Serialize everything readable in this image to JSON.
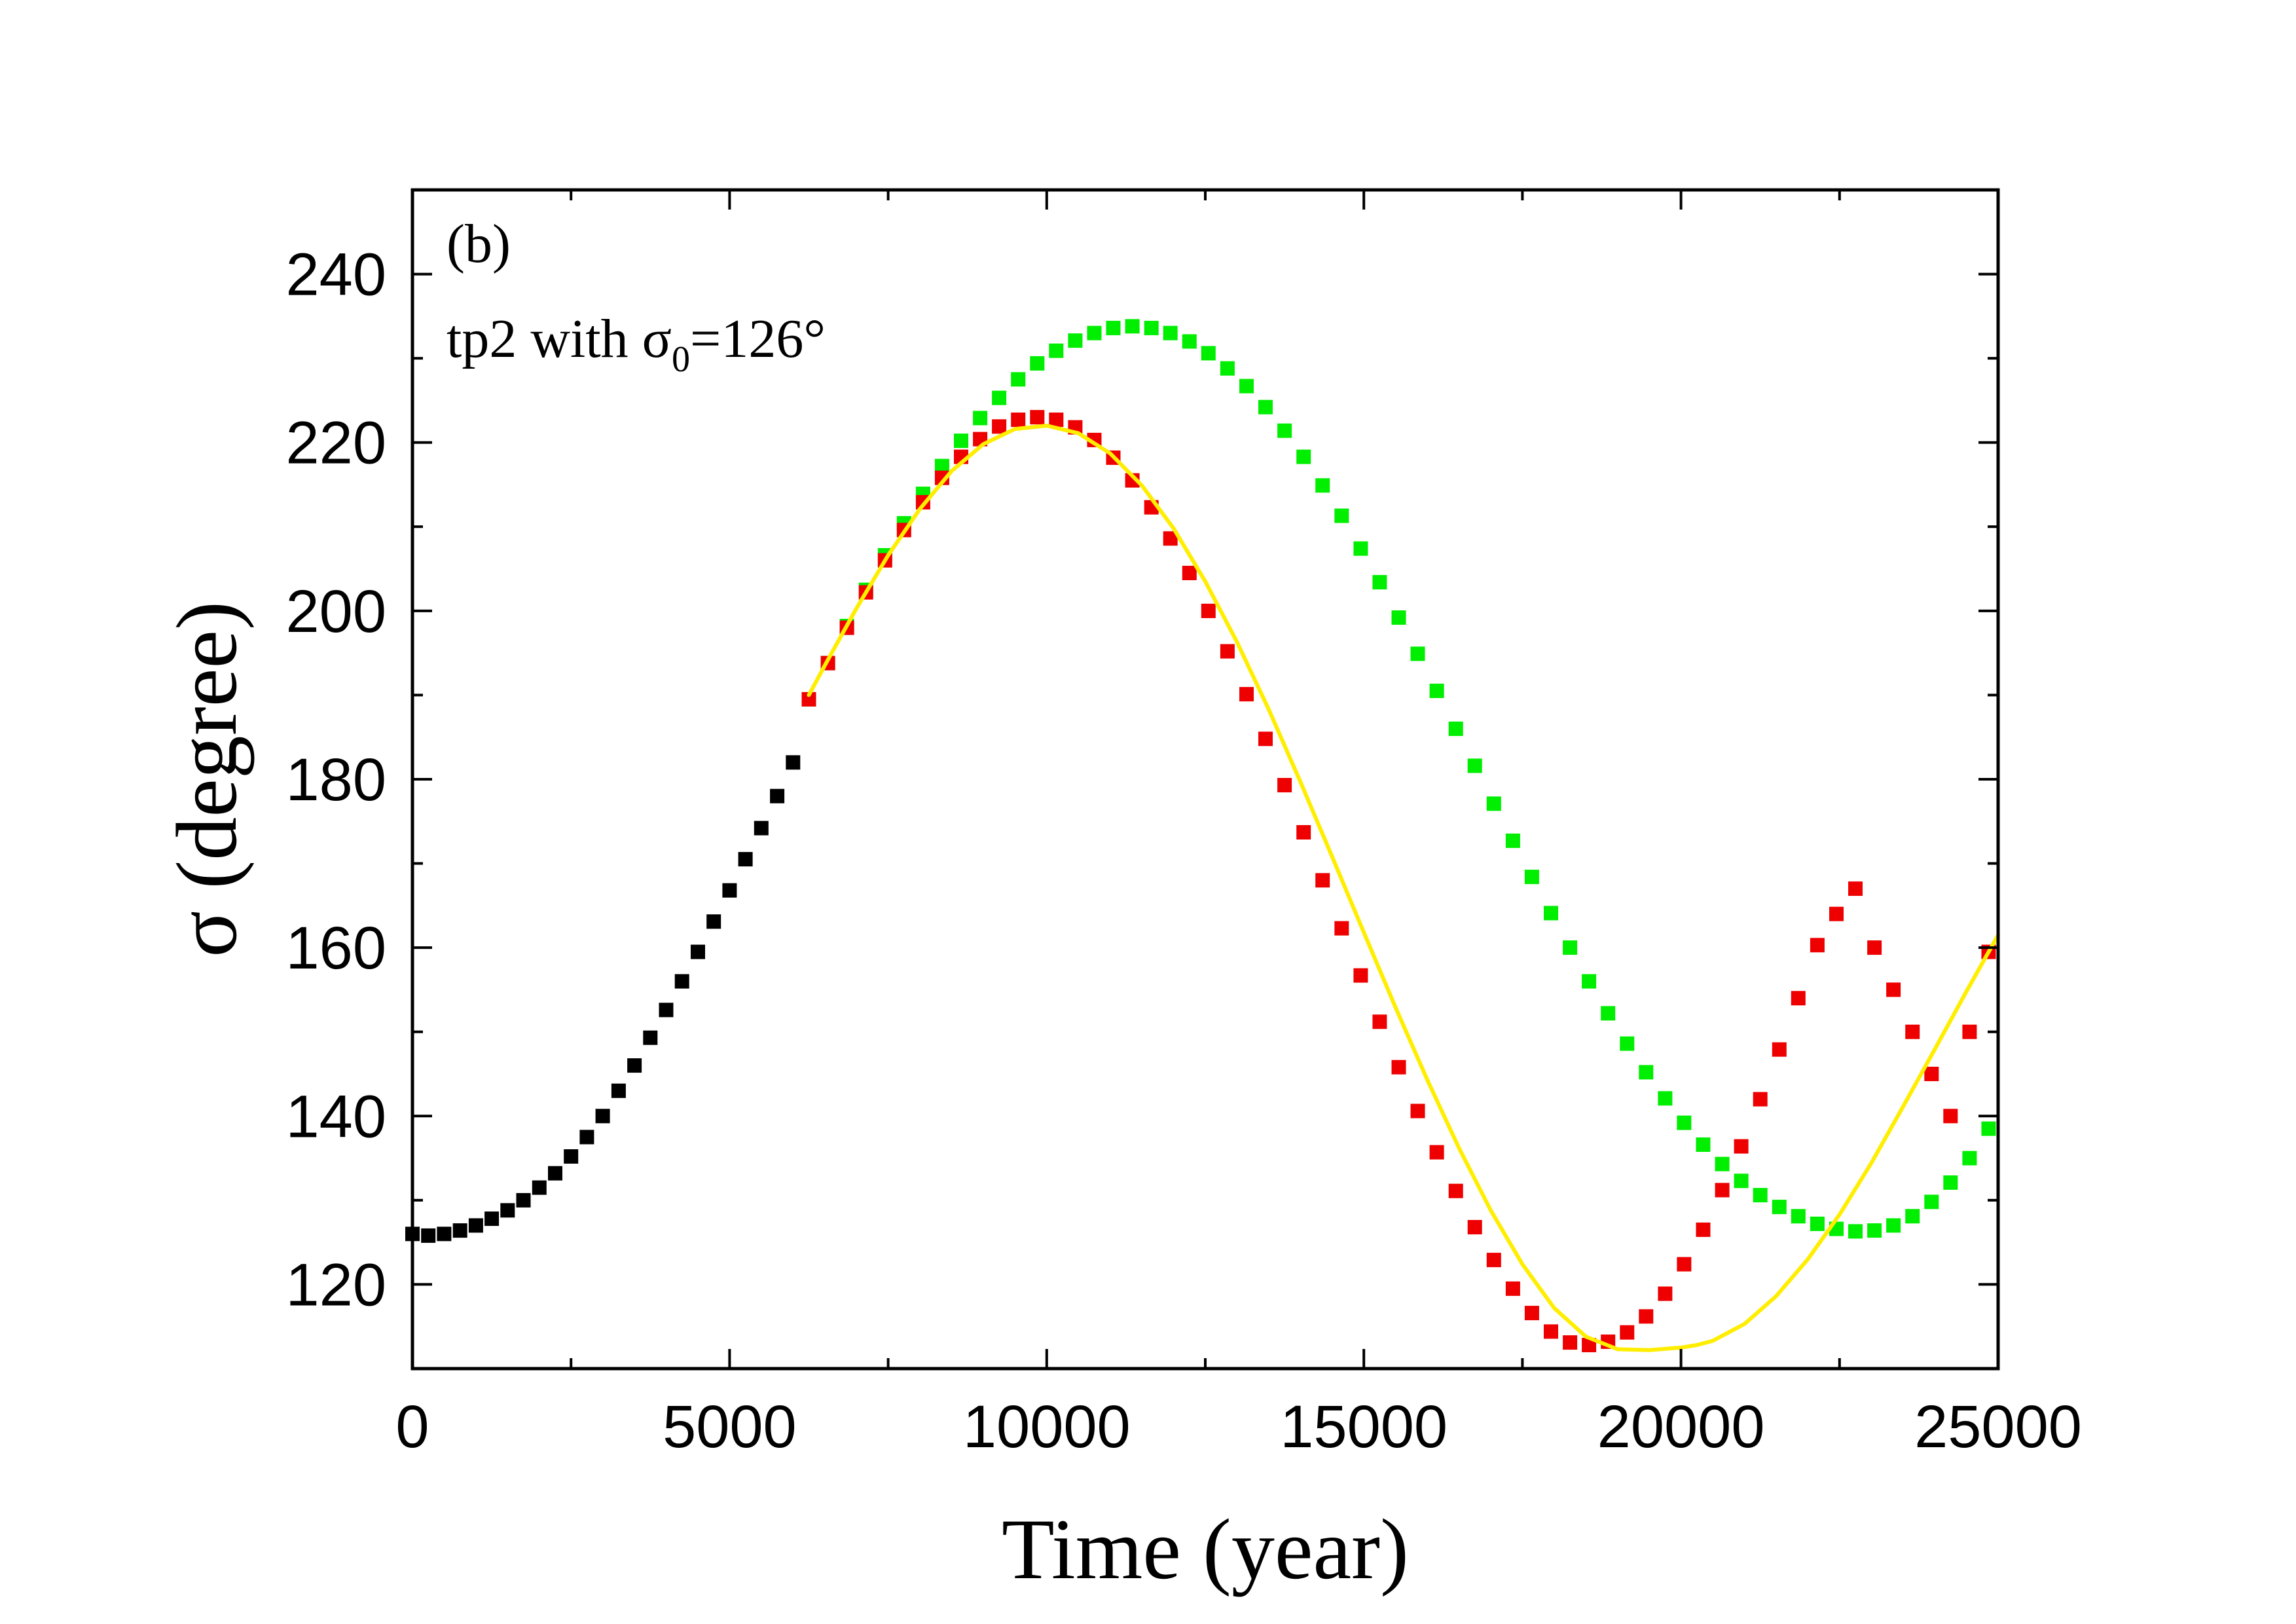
{
  "chart_data": {
    "type": "scatter",
    "title": "",
    "xlabel": "Time (year)",
    "ylabel": "σ (degree)",
    "xlim": [
      0,
      25000
    ],
    "ylim": [
      110,
      250
    ],
    "xticks": [
      0,
      5000,
      10000,
      15000,
      20000,
      25000
    ],
    "xtick_labels": [
      "0",
      "5000",
      "10000",
      "15000",
      "20000",
      "25000"
    ],
    "xminor": [
      2500,
      7500,
      12500,
      17500,
      22500
    ],
    "yticks": [
      120,
      140,
      160,
      180,
      200,
      220,
      240
    ],
    "ytick_labels": [
      "120",
      "140",
      "160",
      "180",
      "200",
      "220",
      "240"
    ],
    "yminor": [
      130,
      150,
      170,
      190,
      210,
      230
    ],
    "grid": false,
    "legend": "none",
    "annotations": {
      "panel": "(b)",
      "label_prefix": "tp2 with σ",
      "label_sub": "0",
      "label_suffix": "=126°"
    },
    "series": [
      {
        "name": "black squares",
        "kind": "markers",
        "color": "#000000",
        "x": [
          0,
          250,
          500,
          750,
          1000,
          1250,
          1500,
          1750,
          2000,
          2250,
          2500,
          2750,
          3000,
          3250,
          3500,
          3750,
          4000,
          4250,
          4500,
          4750,
          5000,
          5250,
          5500,
          5750,
          6000
        ],
        "y": [
          126,
          125.8,
          126,
          126.4,
          127,
          127.8,
          128.8,
          130,
          131.5,
          133.2,
          135.2,
          137.5,
          140,
          143,
          146,
          149.3,
          152.6,
          156,
          159.5,
          163.1,
          166.8,
          170.5,
          174.2,
          178,
          182
        ]
      },
      {
        "name": "green squares",
        "kind": "markers",
        "color": "#00ee00",
        "x": [
          6250,
          6550,
          6850,
          7150,
          7450,
          7750,
          8050,
          8350,
          8650,
          8950,
          9250,
          9550,
          9850,
          10150,
          10450,
          10750,
          11050,
          11350,
          11650,
          11950,
          12250,
          12550,
          12850,
          13150,
          13450,
          13750,
          14050,
          14350,
          14650,
          14950,
          15250,
          15550,
          15850,
          16150,
          16450,
          16750,
          17050,
          17350,
          17650,
          17950,
          18250,
          18550,
          18850,
          19150,
          19450,
          19750,
          20050,
          20350,
          20650,
          20950,
          21250,
          21550,
          21850,
          22150,
          22450,
          22750,
          23050,
          23350,
          23650,
          23950,
          24250,
          24550,
          24850
        ],
        "y": [
          189.5,
          193.8,
          198.2,
          202.5,
          206.6,
          210.4,
          213.9,
          217.2,
          220.2,
          222.9,
          225.3,
          227.5,
          229.4,
          230.9,
          232.1,
          233,
          233.6,
          233.8,
          233.6,
          233,
          232,
          230.6,
          228.8,
          226.7,
          224.2,
          221.4,
          218.3,
          214.9,
          211.3,
          207.4,
          203.4,
          199.2,
          194.9,
          190.5,
          186,
          181.6,
          177.1,
          172.7,
          168.4,
          164.1,
          160,
          156,
          152.2,
          148.6,
          145.2,
          142.1,
          139.2,
          136.6,
          134.3,
          132.3,
          130.6,
          129.2,
          128.1,
          127.2,
          126.6,
          126.3,
          126.4,
          127,
          128.1,
          129.8,
          132.1,
          135,
          138.5
        ]
      },
      {
        "name": "red squares",
        "kind": "markers",
        "color": "#ee0000",
        "x": [
          6250,
          6550,
          6850,
          7150,
          7450,
          7750,
          8050,
          8350,
          8650,
          8950,
          9250,
          9550,
          9850,
          10150,
          10450,
          10750,
          11050,
          11350,
          11650,
          11950,
          12250,
          12550,
          12850,
          13150,
          13450,
          13750,
          14050,
          14350,
          14650,
          14950,
          15250,
          15550,
          15850,
          16150,
          16450,
          16750,
          17050,
          17350,
          17650,
          17950,
          18250,
          18550,
          18850,
          19150,
          19450,
          19750,
          20050,
          20350,
          20650,
          20950,
          21250,
          21550,
          21850,
          22150,
          22450,
          22750,
          23050,
          23350,
          23650,
          23950,
          24250,
          24550,
          24850
        ],
        "y": [
          189.5,
          193.8,
          198,
          202.2,
          206,
          209.6,
          212.9,
          215.8,
          218.3,
          220.4,
          221.9,
          222.7,
          223,
          222.7,
          221.8,
          220.3,
          218.2,
          215.5,
          212.3,
          208.6,
          204.5,
          200,
          195.2,
          190.1,
          184.8,
          179.3,
          173.7,
          168,
          162.3,
          156.7,
          151.2,
          145.8,
          140.6,
          135.7,
          131.1,
          126.8,
          122.9,
          119.5,
          116.6,
          114.4,
          113.1,
          112.8,
          113.2,
          114.3,
          116.2,
          118.9,
          122.4,
          126.5,
          131.2,
          136.4,
          142,
          147.9,
          154,
          160.3,
          164,
          167,
          160,
          155,
          150,
          145,
          140,
          150,
          159.5
        ]
      },
      {
        "name": "yellow fit",
        "kind": "line",
        "color": "#ffee00",
        "x": [
          6250,
          6500,
          7000,
          7500,
          8000,
          8500,
          9000,
          9500,
          10000,
          10500,
          11000,
          11500,
          12000,
          12500,
          13000,
          13500,
          14000,
          14500,
          15000,
          15500,
          16000,
          16500,
          17000,
          17500,
          18000,
          18500,
          19000,
          19500,
          20000,
          20250,
          20500,
          21000,
          21500,
          22000,
          22500,
          23000,
          23500,
          24000,
          24500,
          25000
        ],
        "y": [
          190,
          193.5,
          200.3,
          206.6,
          212.1,
          216.6,
          219.8,
          221.6,
          222,
          221.1,
          218.7,
          214.9,
          209.8,
          203.5,
          196.3,
          188.3,
          179.7,
          170.8,
          161.8,
          152.9,
          144.3,
          136.2,
          128.8,
          122.4,
          117.2,
          113.8,
          112.3,
          112.2,
          112.5,
          112.8,
          113.3,
          115.3,
          118.6,
          123,
          128.3,
          134.4,
          141.1,
          147.9,
          154.8,
          161.5
        ]
      }
    ]
  }
}
